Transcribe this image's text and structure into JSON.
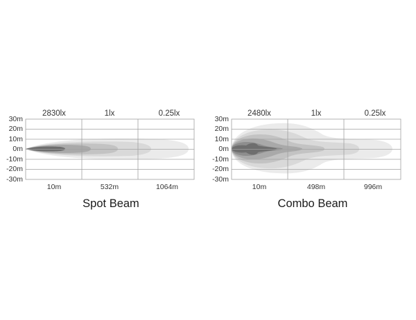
{
  "colors": {
    "grid": "#a0a0a0",
    "zones": [
      "#ebebeb",
      "#d9d9d9",
      "#c3c3c3",
      "#a9a9a9",
      "#8e8e8e",
      "#6e6e6e"
    ]
  },
  "diagrams": [
    {
      "title": "Spot Beam",
      "lux_labels": [
        "2830lx",
        "1lx",
        "0.25lx"
      ],
      "y_ticks": [
        "30m",
        "20m",
        "10m",
        "0m",
        "-10m",
        "-20m",
        "-30m"
      ],
      "x_ticks": [
        "10m",
        "532m",
        "1064m"
      ]
    },
    {
      "title": "Combo Beam",
      "lux_labels": [
        "2480lx",
        "1lx",
        "0.25lx"
      ],
      "y_ticks": [
        "30m",
        "20m",
        "10m",
        "0m",
        "-10m",
        "-20m",
        "-30m"
      ],
      "x_ticks": [
        "10m",
        "498m",
        "996m"
      ]
    }
  ]
}
